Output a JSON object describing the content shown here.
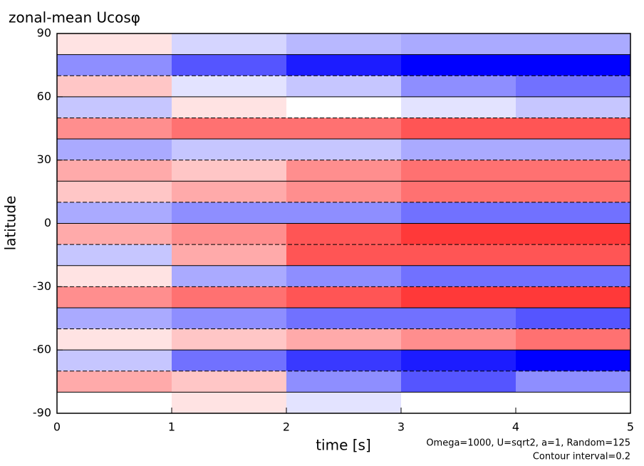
{
  "chart_data": {
    "type": "contour",
    "title": "zonal-mean Ucosφ",
    "xlabel": "time [s]",
    "ylabel": "latitude",
    "annotations": [
      "Omega=1000, U=sqrt2, a=1, Random=125",
      "Contour interval=0.2"
    ],
    "x": [
      0.5,
      1.5,
      2.5,
      3.5,
      4.5
    ],
    "y": [
      85,
      75,
      65,
      55,
      45,
      35,
      25,
      15,
      5,
      -5,
      -15,
      -25,
      -35,
      -45,
      -55,
      -65,
      -75,
      -85
    ],
    "z": [
      [
        0.2,
        -0.3,
        -0.5,
        -0.6,
        -0.6
      ],
      [
        -0.8,
        -1.2,
        -1.6,
        -1.8,
        -1.8
      ],
      [
        0.4,
        -0.2,
        -0.4,
        -0.8,
        -1.0
      ],
      [
        -0.4,
        0.2,
        0.0,
        -0.2,
        -0.4
      ],
      [
        0.8,
        1.0,
        1.0,
        1.2,
        1.2
      ],
      [
        -0.6,
        -0.4,
        -0.4,
        -0.6,
        -0.6
      ],
      [
        0.6,
        0.4,
        0.8,
        1.0,
        1.0
      ],
      [
        0.4,
        0.6,
        0.8,
        1.0,
        1.0
      ],
      [
        -0.6,
        -0.8,
        -0.8,
        -1.0,
        -1.0
      ],
      [
        0.6,
        0.8,
        1.2,
        1.4,
        1.4
      ],
      [
        -0.4,
        0.6,
        1.2,
        1.2,
        1.2
      ],
      [
        0.2,
        -0.6,
        -0.8,
        -1.0,
        -1.0
      ],
      [
        0.8,
        1.0,
        1.2,
        1.4,
        1.4
      ],
      [
        -0.6,
        -0.8,
        -1.0,
        -1.0,
        -1.2
      ],
      [
        0.2,
        0.4,
        0.6,
        0.8,
        1.0
      ],
      [
        -0.4,
        -1.0,
        -1.4,
        -1.6,
        -1.8
      ],
      [
        0.6,
        0.4,
        -0.8,
        -1.2,
        -0.8
      ],
      [
        0.0,
        0.2,
        -0.2,
        0.0,
        0.0
      ]
    ],
    "xlim": [
      0,
      5
    ],
    "ylim": [
      -90,
      90
    ],
    "xticks": [
      0,
      1,
      2,
      3,
      4,
      5
    ],
    "yticks": [
      -90,
      -60,
      -30,
      0,
      30,
      60,
      90
    ],
    "positive_color": "#ff0000",
    "negative_color": "#0000ff"
  }
}
